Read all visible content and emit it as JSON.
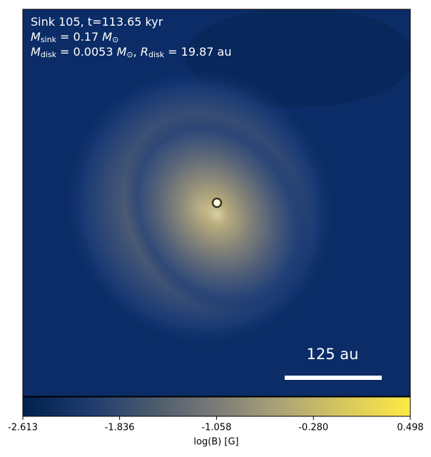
{
  "chart_data": {
    "type": "image",
    "annotation_lines": [
      [
        {
          "text": "Sink 105, t=113.65 kyr"
        }
      ],
      [
        {
          "text": "M",
          "style": "italic"
        },
        {
          "text": "sink",
          "style": "sub"
        },
        {
          "text": " = 0.17 "
        },
        {
          "text": "M",
          "style": "italic"
        },
        {
          "text": "⊙",
          "style": "sub"
        }
      ],
      [
        {
          "text": "M",
          "style": "italic"
        },
        {
          "text": "disk",
          "style": "sub"
        },
        {
          "text": " = 0.0053 "
        },
        {
          "text": "M",
          "style": "italic"
        },
        {
          "text": "⊙",
          "style": "sub"
        },
        {
          "text": ", "
        },
        {
          "text": "R",
          "style": "italic"
        },
        {
          "text": "disk",
          "style": "sub"
        },
        {
          "text": " = 19.87 au"
        }
      ]
    ],
    "scale_bar_label": "125 au",
    "colorbar_label": "log(B) [G]",
    "clim": [
      -2.613,
      0.498
    ],
    "cticks": [
      -2.613,
      -1.836,
      -1.058,
      {
        "value": -0.28,
        "label": "-0.280"
      },
      0.498
    ],
    "colormap": [
      "#00204c",
      "#1d3a6e",
      "#4a5a6d",
      "#7c7b78",
      "#aca476",
      "#d9c85d",
      "#ffe945"
    ]
  }
}
